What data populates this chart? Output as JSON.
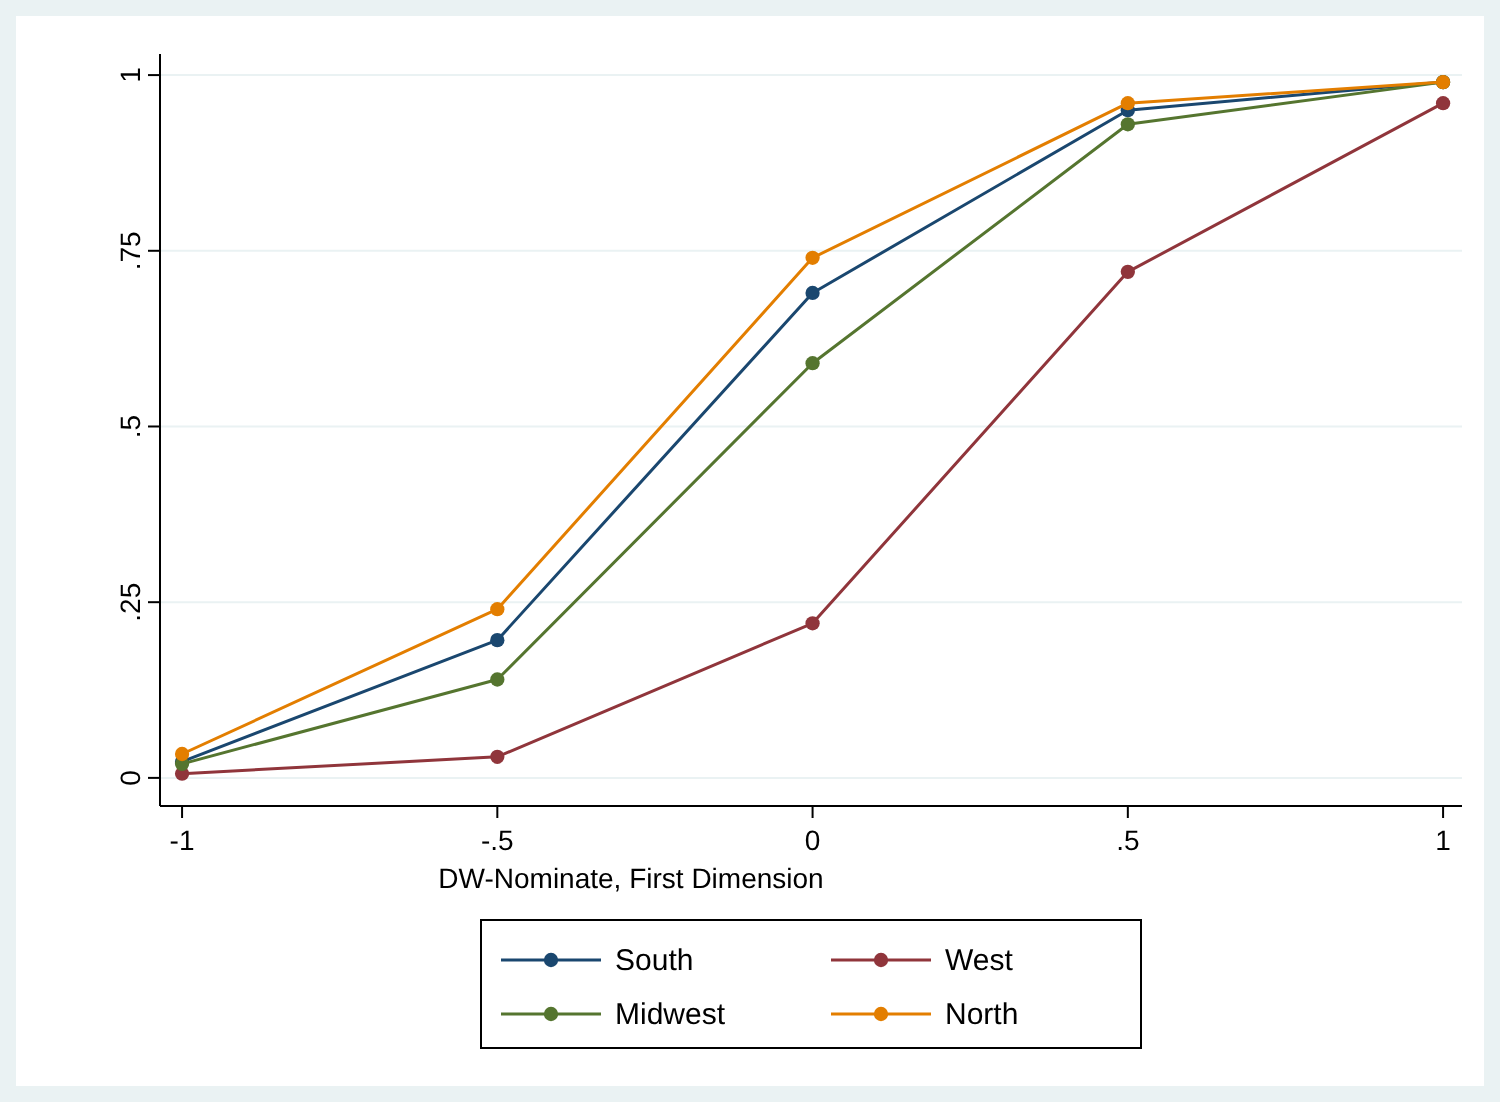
{
  "chart_data": {
    "type": "line",
    "xlabel": "DW-Nominate, First Dimension",
    "x": [
      -1,
      -0.5,
      0,
      0.5,
      1
    ],
    "xlim": [
      -1.035,
      1.03
    ],
    "xticks": [
      {
        "value": -1,
        "label": "-1"
      },
      {
        "value": -0.5,
        "label": "-.5"
      },
      0,
      {
        "value": 0.5,
        "label": ".5"
      },
      1
    ],
    "ylim": [
      -0.04,
      1.03
    ],
    "yticks": [
      0,
      {
        "value": 0.25,
        "label": ".25"
      },
      {
        "value": 0.5,
        "label": ".5"
      },
      {
        "value": 0.75,
        "label": ".75"
      },
      1
    ],
    "grid": "y",
    "legend": "bottom",
    "marker": "circle",
    "series": [
      {
        "name": "South",
        "color": "#1a476f",
        "values": [
          0.023,
          0.196,
          0.69,
          0.95,
          0.99
        ]
      },
      {
        "name": "West",
        "color": "#90353b",
        "values": [
          0.006,
          0.03,
          0.22,
          0.72,
          0.96
        ]
      },
      {
        "name": "Midwest",
        "color": "#55752f",
        "values": [
          0.02,
          0.14,
          0.59,
          0.93,
          0.99
        ]
      },
      {
        "name": "North",
        "color": "#e37e00",
        "values": [
          0.034,
          0.24,
          0.74,
          0.96,
          0.99
        ]
      }
    ]
  }
}
